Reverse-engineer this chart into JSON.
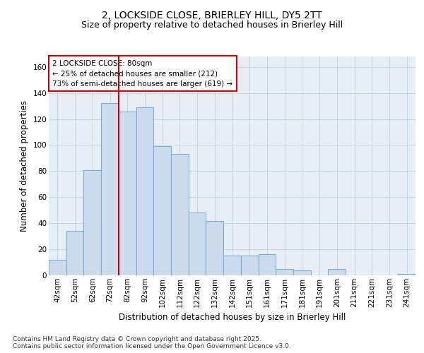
{
  "title_line1": "2, LOCKSIDE CLOSE, BRIERLEY HILL, DY5 2TT",
  "title_line2": "Size of property relative to detached houses in Brierley Hill",
  "xlabel": "Distribution of detached houses by size in Brierley Hill",
  "ylabel": "Number of detached properties",
  "categories": [
    "42sqm",
    "52sqm",
    "62sqm",
    "72sqm",
    "82sqm",
    "92sqm",
    "102sqm",
    "112sqm",
    "122sqm",
    "132sqm",
    "142sqm",
    "151sqm",
    "161sqm",
    "171sqm",
    "181sqm",
    "191sqm",
    "201sqm",
    "211sqm",
    "221sqm",
    "231sqm",
    "241sqm"
  ],
  "values": [
    12,
    34,
    81,
    132,
    126,
    129,
    99,
    93,
    48,
    42,
    15,
    15,
    16,
    5,
    4,
    0,
    5,
    0,
    0,
    0,
    1
  ],
  "bar_color": "#ccdcee",
  "bar_edge_color": "#7bafd4",
  "grid_color": "#c8d4e0",
  "background_color": "#e8eef6",
  "vline_color": "#cc0000",
  "vline_x_idx": 4,
  "annotation_text": "2 LOCKSIDE CLOSE: 80sqm\n← 25% of detached houses are smaller (212)\n73% of semi-detached houses are larger (619) →",
  "annotation_box_edgecolor": "#cc0000",
  "ylim": [
    0,
    168
  ],
  "yticks": [
    0,
    20,
    40,
    60,
    80,
    100,
    120,
    140,
    160
  ],
  "footer_text": "Contains HM Land Registry data © Crown copyright and database right 2025.\nContains public sector information licensed under the Open Government Licence v3.0.",
  "title_fontsize": 10,
  "subtitle_fontsize": 9,
  "axis_label_fontsize": 8.5,
  "tick_fontsize": 7.5,
  "annotation_fontsize": 7.5,
  "footer_fontsize": 6.5
}
